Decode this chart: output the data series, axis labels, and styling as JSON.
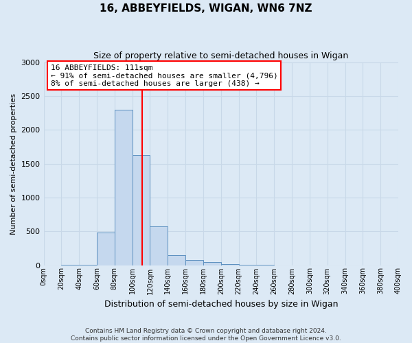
{
  "title": "16, ABBEYFIELDS, WIGAN, WN6 7NZ",
  "subtitle": "Size of property relative to semi-detached houses in Wigan",
  "xlabel": "Distribution of semi-detached houses by size in Wigan",
  "ylabel": "Number of semi-detached properties",
  "footer": "Contains HM Land Registry data © Crown copyright and database right 2024.\nContains public sector information licensed under the Open Government Licence v3.0.",
  "bin_edges": [
    0,
    20,
    40,
    60,
    80,
    100,
    120,
    140,
    160,
    180,
    200,
    220,
    240,
    260,
    280,
    300,
    320,
    340,
    360,
    380,
    400
  ],
  "bar_values": [
    0,
    2,
    5,
    480,
    2300,
    1630,
    570,
    145,
    80,
    45,
    12,
    5,
    2,
    0,
    0,
    0,
    0,
    0,
    0,
    0
  ],
  "property_size": 111,
  "annotation_title": "16 ABBEYFIELDS: 111sqm",
  "annotation_line1": "← 91% of semi-detached houses are smaller (4,796)",
  "annotation_line2": "8% of semi-detached houses are larger (438) →",
  "bar_color": "#c5d8ee",
  "bar_edge_color": "#5b8fbf",
  "vline_color": "red",
  "annotation_box_facecolor": "white",
  "annotation_box_edgecolor": "red",
  "ylim_max": 3000,
  "yticks": [
    0,
    500,
    1000,
    1500,
    2000,
    2500,
    3000
  ],
  "bg_color": "#dce9f5",
  "grid_color": "#c8d8e8",
  "title_fontsize": 11,
  "subtitle_fontsize": 9
}
